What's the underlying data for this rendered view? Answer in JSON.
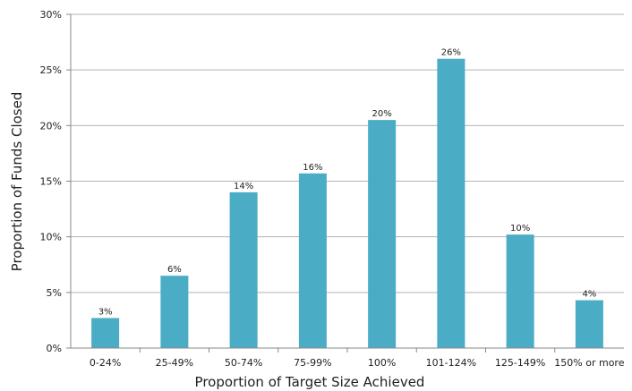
{
  "chart_data": {
    "type": "bar",
    "categories": [
      "0-24%",
      "25-49%",
      "50-74%",
      "75-99%",
      "100%",
      "101-124%",
      "125-149%",
      "150% or more"
    ],
    "values": [
      2.7,
      6.5,
      14.0,
      15.7,
      20.5,
      26.0,
      10.2,
      4.3
    ],
    "data_labels": [
      "3%",
      "6%",
      "14%",
      "16%",
      "20%",
      "26%",
      "10%",
      "4%"
    ],
    "yticks": [
      "0%",
      "5%",
      "10%",
      "15%",
      "20%",
      "25%",
      "30%"
    ],
    "ylim": [
      0,
      30
    ],
    "xlabel": "Proportion of Target Size Achieved",
    "ylabel": "Proportion of Funds Closed",
    "grid": true,
    "bar_color": "#4bacc6",
    "grid_color": "#b3b3b3"
  }
}
